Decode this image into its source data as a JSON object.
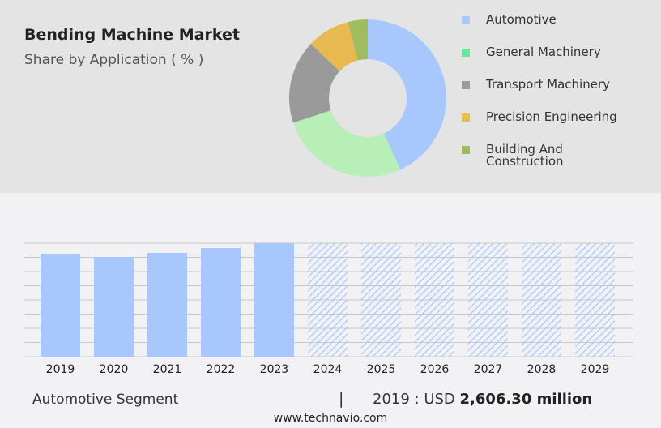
{
  "header": {
    "title": "Bending Machine Market",
    "subtitle": "Share by Application ( % )"
  },
  "chart_data": [
    {
      "type": "pie",
      "donut": true,
      "categories": [
        "Automotive",
        "General Machinery",
        "Transport Machinery",
        "Precision Engineering",
        "Building And Construction"
      ],
      "legend_labels": [
        "Automotive",
        "General Machinery",
        "Transport Machinery",
        "Precision Engineering",
        "Building And\nConstruction"
      ],
      "values": [
        43.6,
        27.0,
        17.4,
        8.9,
        4.1
      ],
      "colors": [
        "#a8c8fd",
        "#b8eeb8",
        "#9a9a9a",
        "#e8b951",
        "#9fbc5e"
      ],
      "legend_colors": [
        "#a8c8fd",
        "#6ee39a",
        "#9a9a9a",
        "#e8c051",
        "#9fbc5e"
      ],
      "legend": "right"
    },
    {
      "type": "bar",
      "categories": [
        "2019",
        "2020",
        "2021",
        "2022",
        "2023",
        "2024",
        "2025",
        "2026",
        "2027",
        "2028",
        "2029"
      ],
      "values": [
        2606.3,
        2524,
        2627,
        2750,
        2873,
        null,
        null,
        null,
        null,
        null,
        null
      ],
      "forecast_years": [
        "2024",
        "2025",
        "2026",
        "2027",
        "2028",
        "2029"
      ],
      "color": "#a8c8fd",
      "grid": true,
      "xlabel": "",
      "ylabel": ""
    }
  ],
  "footer": {
    "segment": "Automotive Segment",
    "separator": "|",
    "year_label": "2019 : USD",
    "value": "2,606.30 million",
    "source": "www.technavio.com"
  }
}
